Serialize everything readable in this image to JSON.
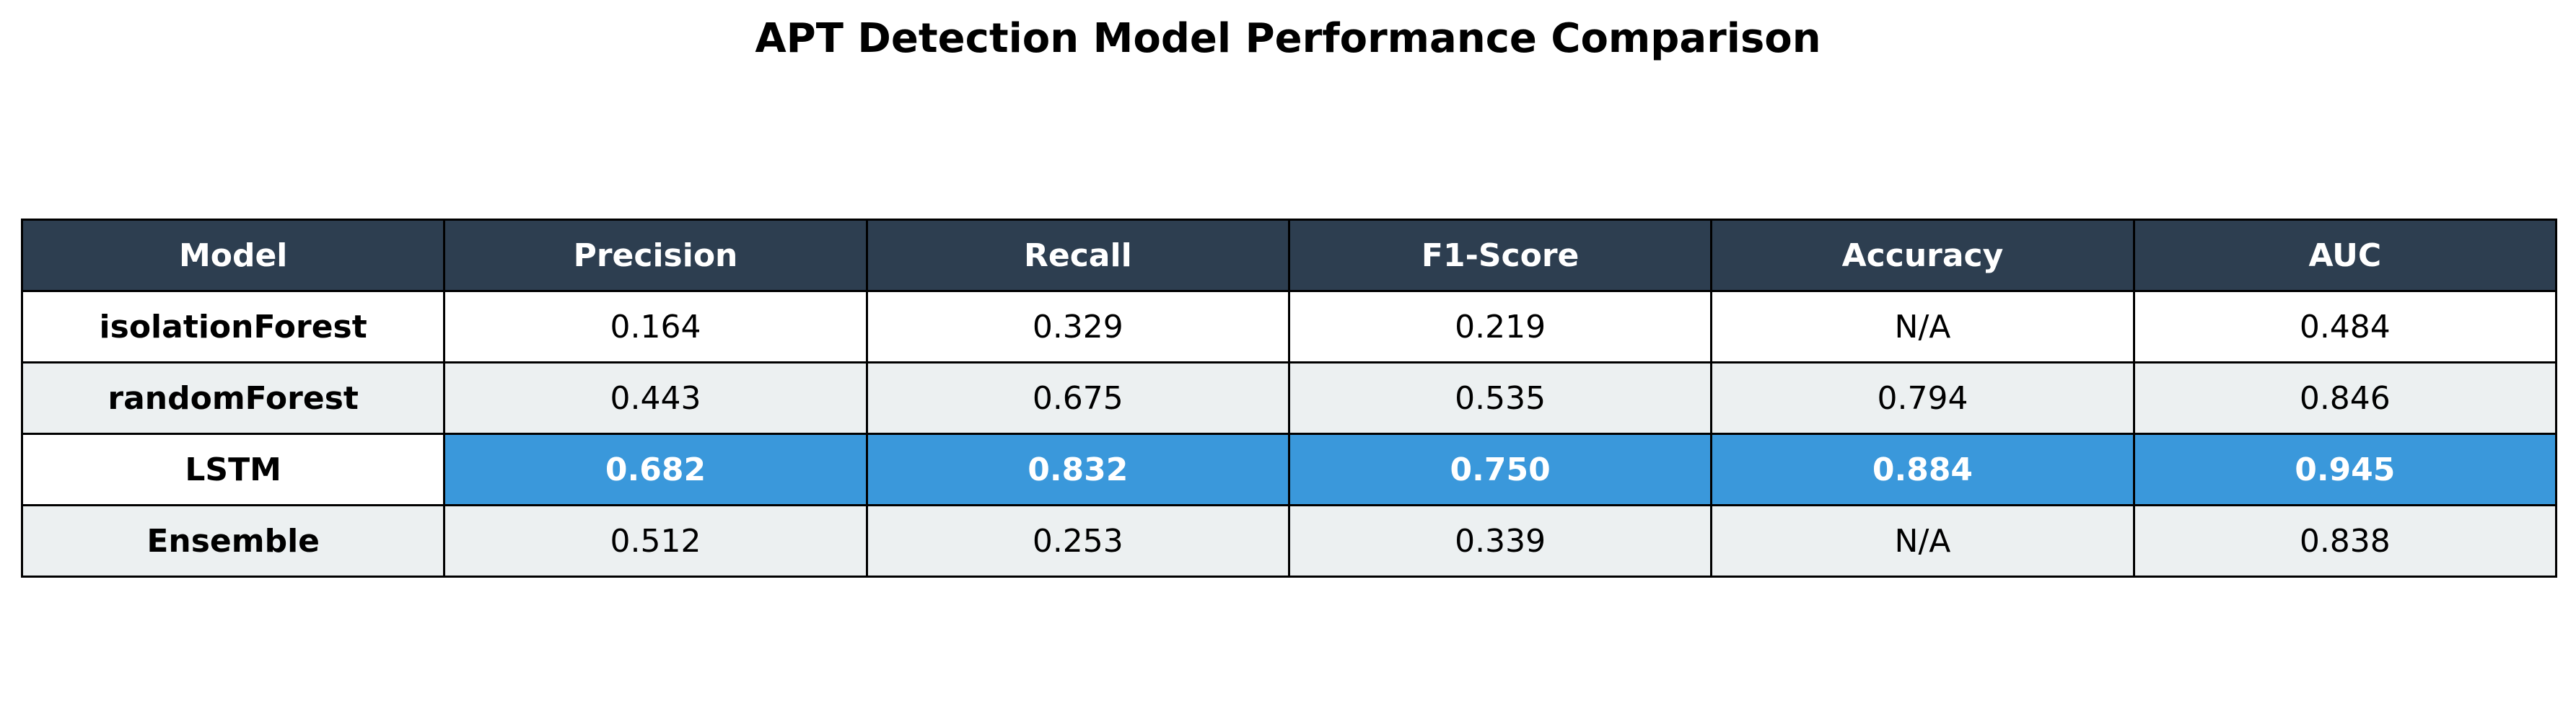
{
  "chart_data": {
    "type": "table",
    "title": "APT Detection Model Performance Comparison",
    "columns": [
      "Model",
      "Precision",
      "Recall",
      "F1-Score",
      "Accuracy",
      "AUC"
    ],
    "rows": [
      [
        "isolationForest",
        "0.164",
        "0.329",
        "0.219",
        "N/A",
        "0.484"
      ],
      [
        "randomForest",
        "0.443",
        "0.675",
        "0.535",
        "0.794",
        "0.846"
      ],
      [
        "LSTM",
        "0.682",
        "0.832",
        "0.750",
        "0.884",
        "0.945"
      ],
      [
        "Ensemble",
        "0.512",
        "0.253",
        "0.339",
        "N/A",
        "0.838"
      ]
    ],
    "highlight_row": 2
  },
  "colors": {
    "header_bg": "#2d3e50",
    "header_text": "#ffffff",
    "highlight_bg": "#3a98db",
    "highlight_text": "#ffffff",
    "row_alt_bg": "#ecf0f1",
    "row_bg": "#ffffff",
    "border": "#000000"
  }
}
